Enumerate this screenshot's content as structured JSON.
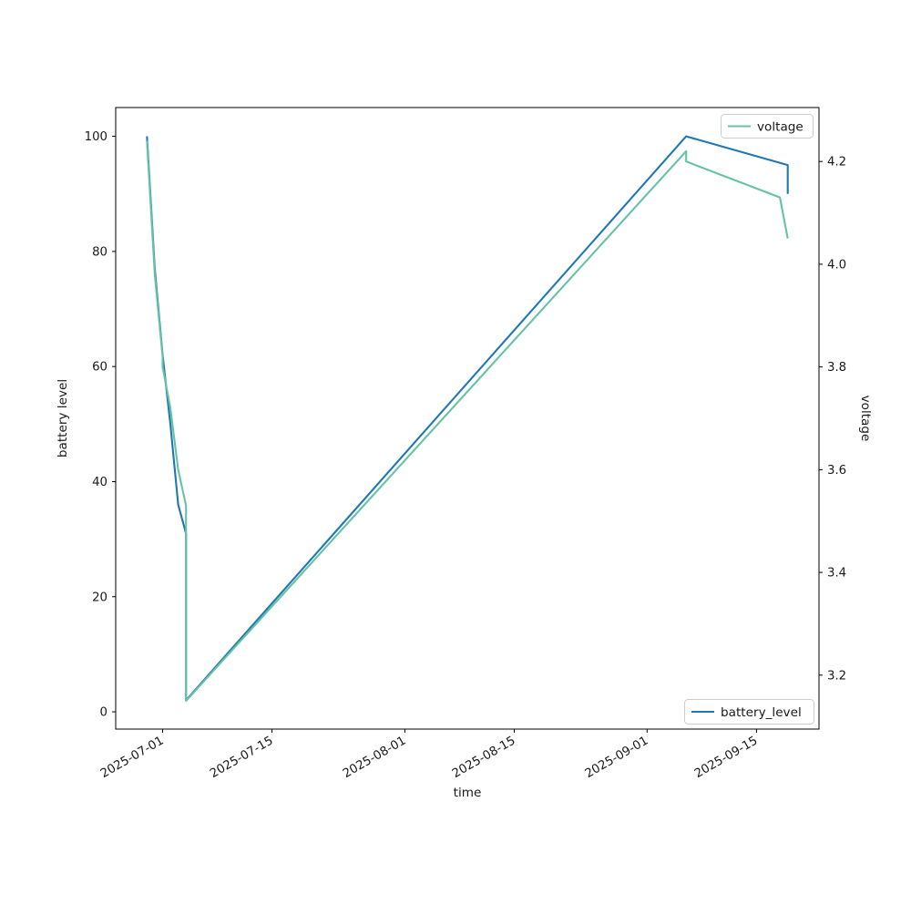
{
  "colors": {
    "battery_level": "#1f77b4",
    "voltage": "#66c2a5",
    "axis": "#000000",
    "legend_border": "#cccccc"
  },
  "legend_top": {
    "label": "voltage"
  },
  "legend_bottom": {
    "label": "battery_level"
  },
  "chart_data": {
    "type": "line",
    "title": "",
    "xlabel": "time",
    "ylabel_left": "battery level",
    "ylabel_right": "voltage",
    "xlim": [
      "2025-06-25",
      "2025-09-23"
    ],
    "ylim_left": [
      -3,
      105
    ],
    "ylim_right": [
      3.095,
      4.305
    ],
    "grid": false,
    "x_ticks": [
      "2025-07-01",
      "2025-07-15",
      "2025-08-01",
      "2025-08-15",
      "2025-09-01",
      "2025-09-15"
    ],
    "y_ticks_left": [
      "0",
      "20",
      "40",
      "60",
      "80",
      "100"
    ],
    "y_ticks_right": [
      "3.2",
      "3.4",
      "3.6",
      "3.8",
      "4.0",
      "4.2"
    ],
    "legend_positions": {
      "voltage": "upper right",
      "battery_level": "lower right"
    },
    "series": [
      {
        "name": "battery_level",
        "axis": "left",
        "color": "#1f77b4",
        "points": [
          [
            "2025-06-29",
            100
          ],
          [
            "2025-06-30",
            77
          ],
          [
            "2025-07-01",
            62
          ],
          [
            "2025-07-02",
            50
          ],
          [
            "2025-07-03",
            36
          ],
          [
            "2025-07-04",
            31
          ],
          [
            "2025-07-04",
            2
          ],
          [
            "2025-09-06",
            100
          ],
          [
            "2025-09-19",
            95
          ],
          [
            "2025-09-19",
            90
          ]
        ]
      },
      {
        "name": "voltage",
        "axis": "right",
        "color": "#66c2a5",
        "points": [
          [
            "2025-06-29",
            4.24
          ],
          [
            "2025-06-30",
            3.98
          ],
          [
            "2025-07-01",
            3.82
          ],
          [
            "2025-07-01",
            3.8
          ],
          [
            "2025-07-02",
            3.72
          ],
          [
            "2025-07-03",
            3.6
          ],
          [
            "2025-07-04",
            3.53
          ],
          [
            "2025-07-04",
            3.15
          ],
          [
            "2025-09-06",
            4.22
          ],
          [
            "2025-09-06",
            4.2
          ],
          [
            "2025-09-18",
            4.13
          ],
          [
            "2025-09-19",
            4.05
          ]
        ]
      }
    ]
  }
}
